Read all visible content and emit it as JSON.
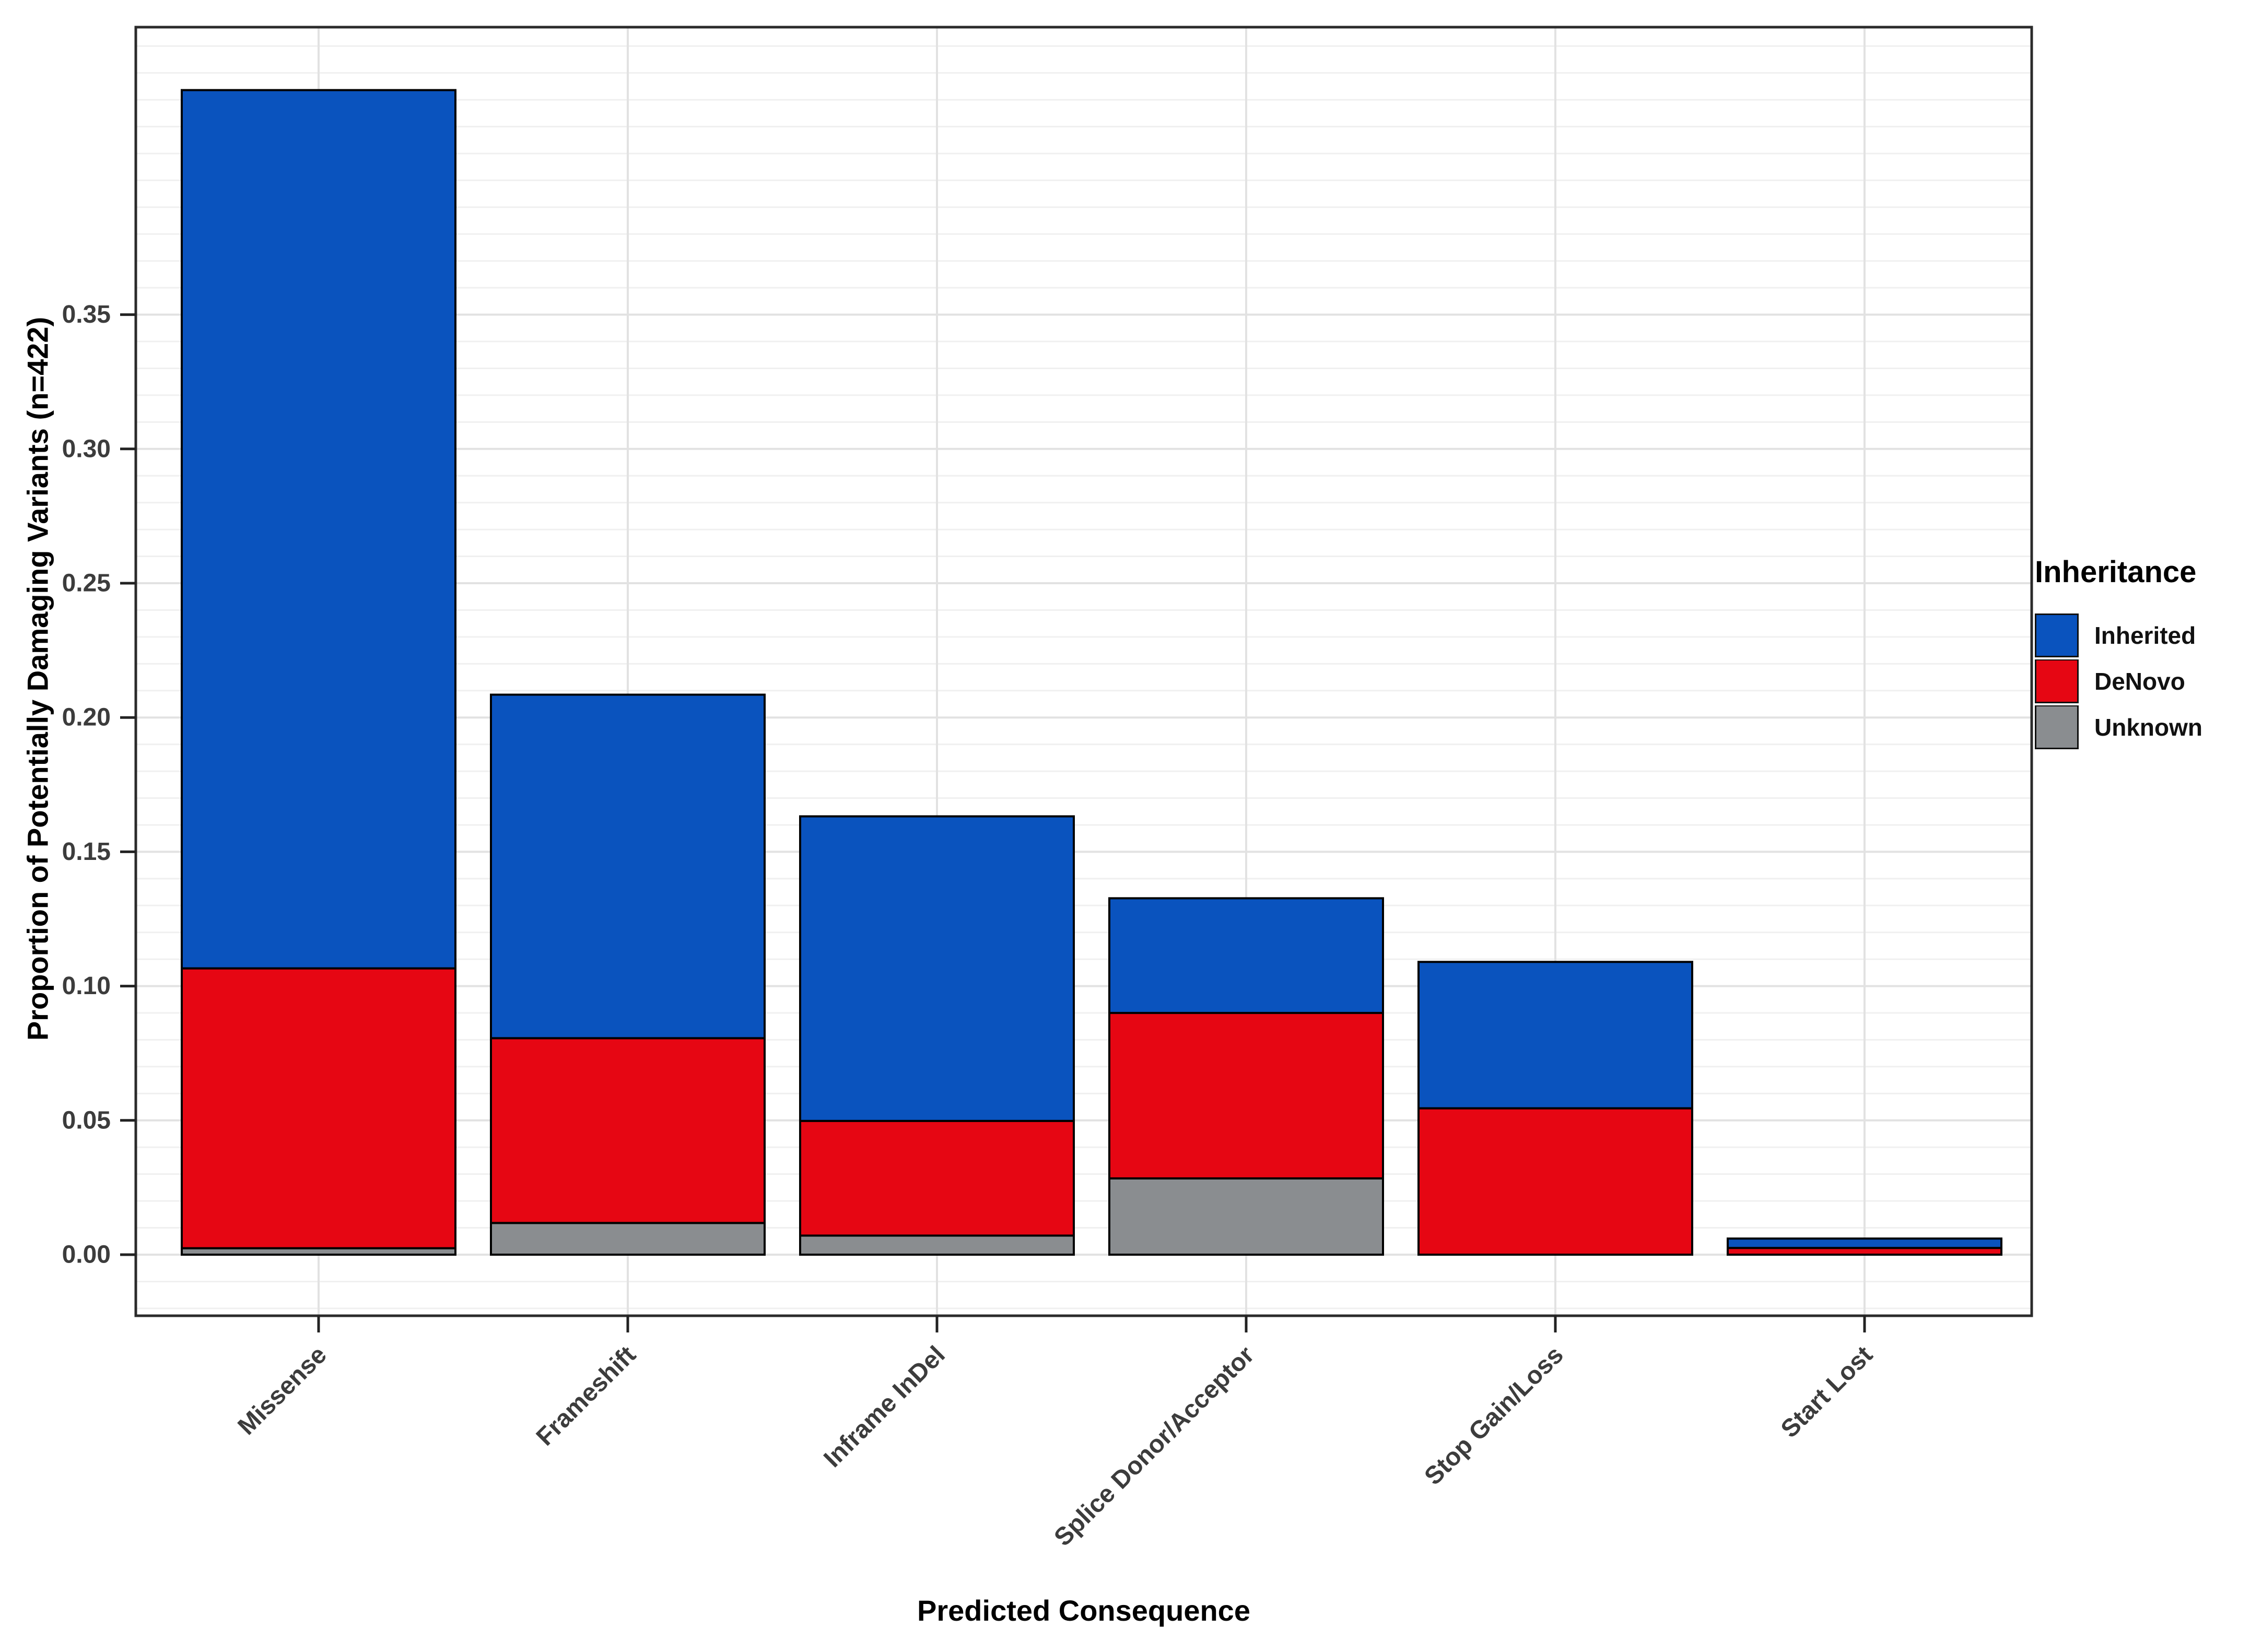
{
  "chart_data": {
    "type": "bar",
    "stacked": true,
    "orientation": "vertical",
    "title": "",
    "xlabel": "Predicted Consequence",
    "ylabel": "Proportion of Potentially Damaging Variants (n=422)",
    "categories": [
      "Missense",
      "Frameshift",
      "Inframe InDel",
      "Splice Donor/Acceptor",
      "Stop Gain/Loss",
      "Start Lost"
    ],
    "series": [
      {
        "name": "Unknown",
        "color": "#8A8D90",
        "values": [
          0.0024,
          0.0118,
          0.0071,
          0.0284,
          0.0,
          0.0
        ]
      },
      {
        "name": "DeNovo",
        "color": "#E60613",
        "values": [
          0.1042,
          0.0688,
          0.0427,
          0.0616,
          0.0545,
          0.0025
        ]
      },
      {
        "name": "Inherited",
        "color": "#0A53BE",
        "values": [
          0.327,
          0.1279,
          0.1134,
          0.0427,
          0.0545,
          0.0035
        ]
      }
    ],
    "stack_totals": [
      0.4336,
      0.2085,
      0.1632,
      0.1327,
      0.109,
      0.006
    ],
    "y_ticks": {
      "values": [
        0,
        0.05,
        0.1,
        0.15,
        0.2,
        0.25,
        0.3,
        0.35
      ],
      "labels": [
        "0.00",
        "0.05",
        "0.10",
        "0.15",
        "0.20",
        "0.25",
        "0.30",
        "0.35"
      ]
    },
    "ylim": [
      -0.0227,
      0.457
    ],
    "grid": {
      "minor_step": 0.01,
      "major_step": 0.05,
      "minor_color": "#F0F0F0",
      "major_color": "#E2E2E2",
      "background": "#FFFFFF"
    },
    "bar_outline_color": "#000000",
    "legend": {
      "title": "Inheritance",
      "position": "right",
      "entries": [
        {
          "label": "Inherited",
          "color": "#0A53BE"
        },
        {
          "label": "DeNovo",
          "color": "#E60613"
        },
        {
          "label": "Unknown",
          "color": "#8A8D90"
        }
      ]
    },
    "axis": {
      "tick_text_color": "#3C3C3C",
      "title_color": "#000000",
      "tick_color": "#222222",
      "panel_border_color": "#2B2B2B"
    }
  }
}
